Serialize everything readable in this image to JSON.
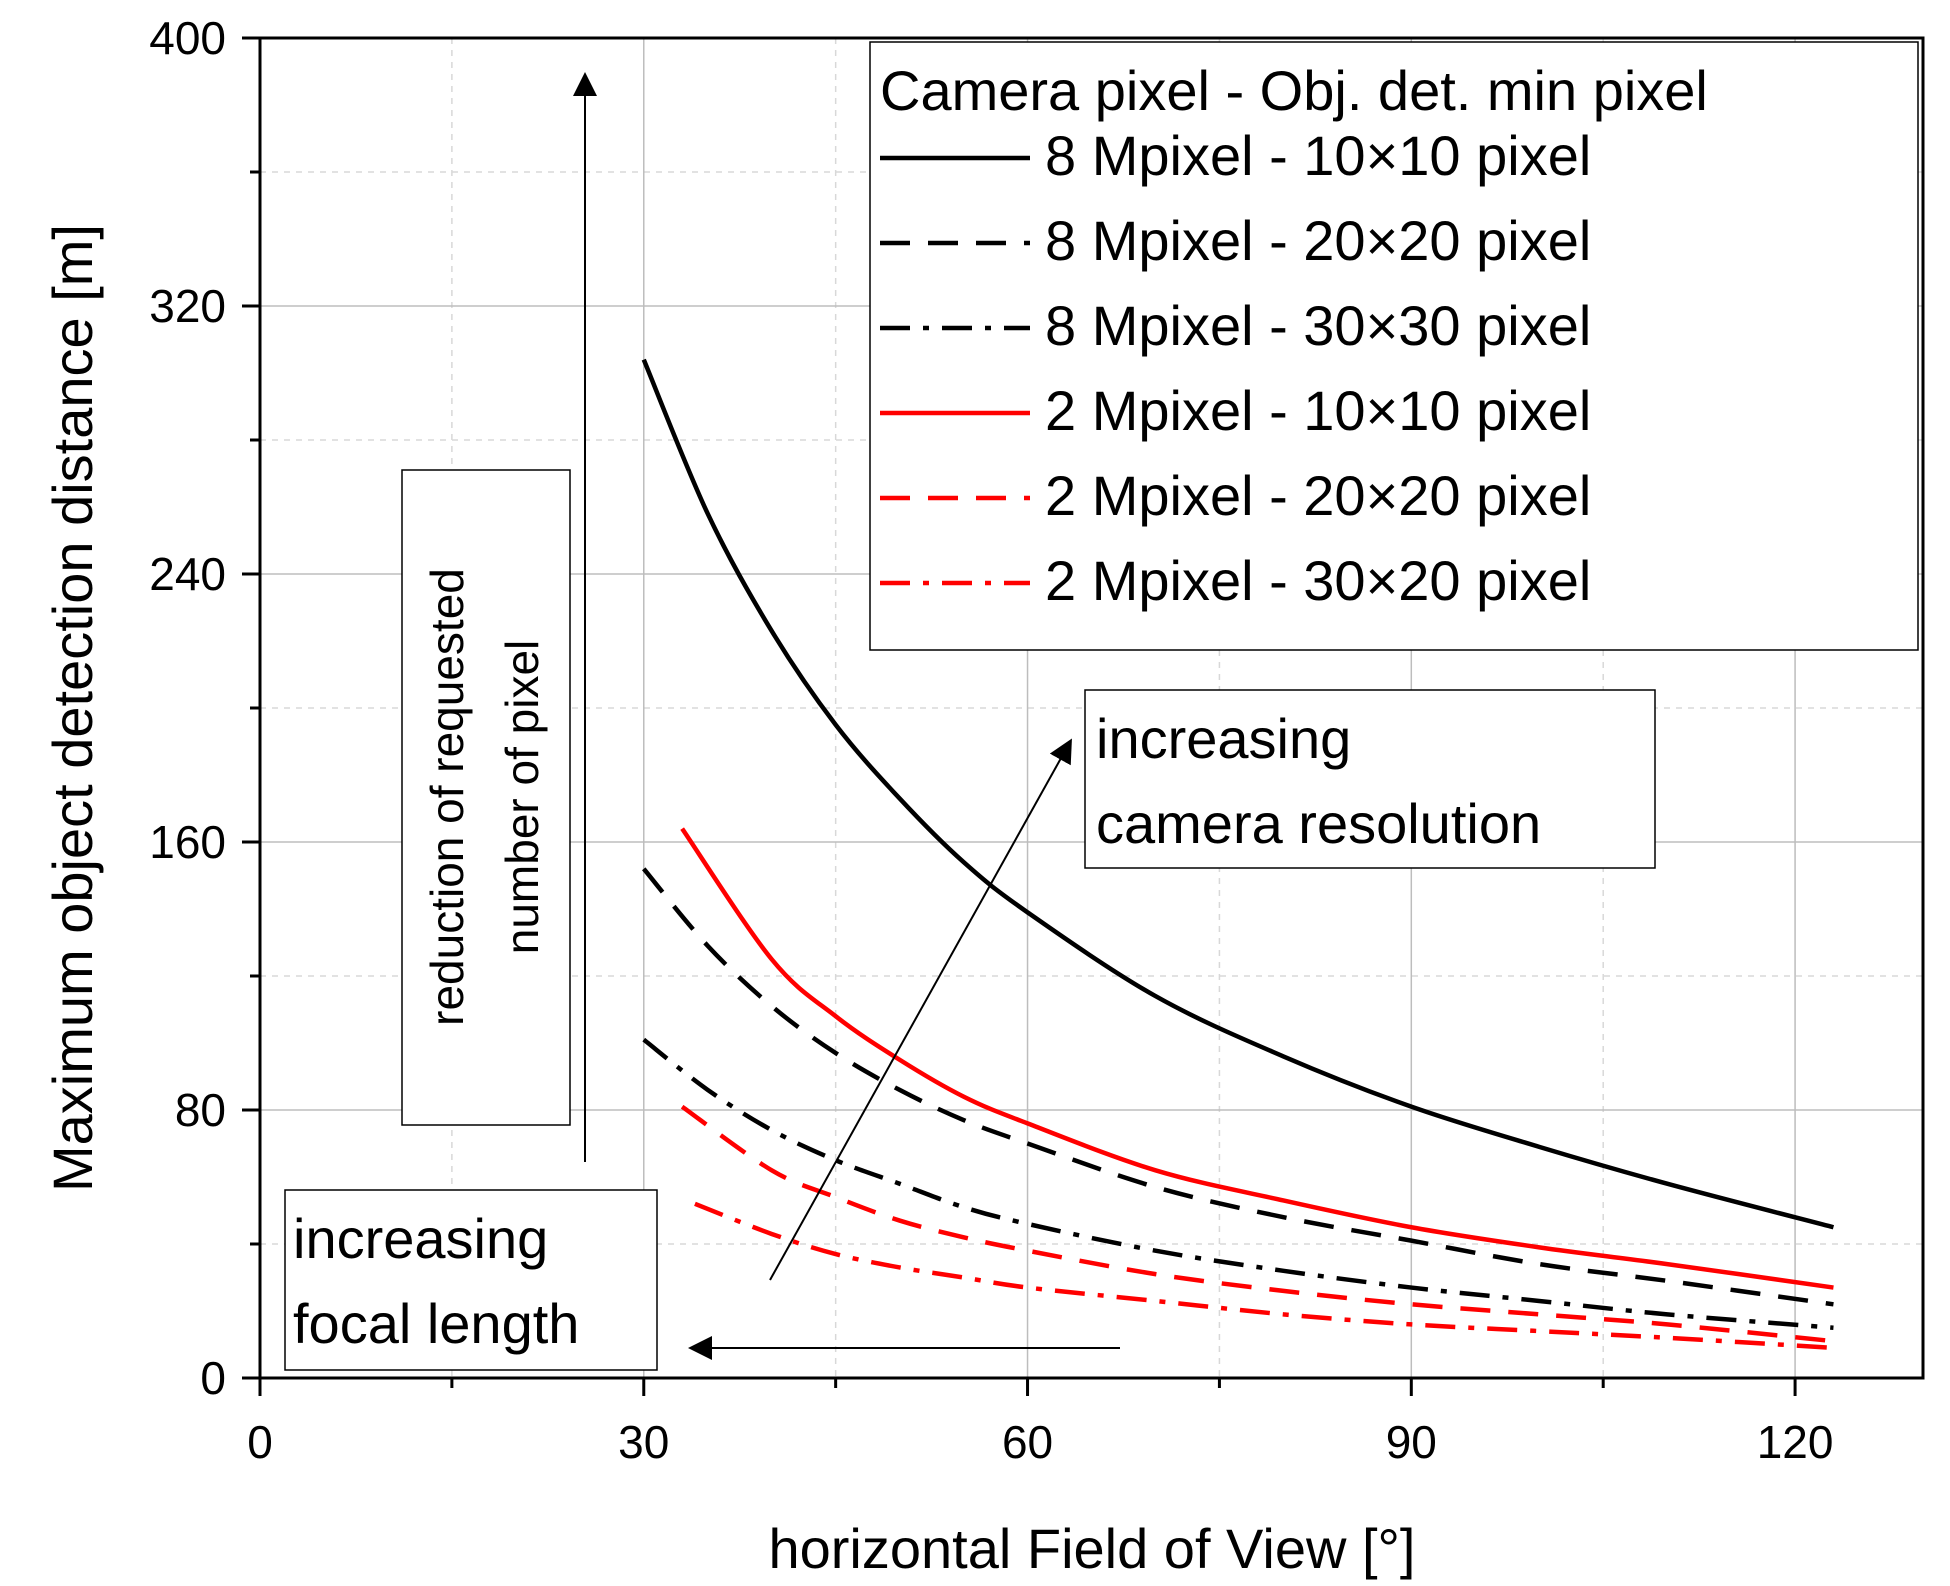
{
  "chart_data": {
    "type": "line",
    "title": "",
    "xlabel": "horizontal Field of View [°]",
    "ylabel": "Maximum object detection distance [m]",
    "xlim": [
      0,
      130
    ],
    "ylim": [
      0,
      400
    ],
    "xticks": [
      0,
      30,
      60,
      90,
      120
    ],
    "yticks": [
      0,
      80,
      160,
      240,
      320,
      400
    ],
    "grid": true,
    "legend_title": "Camera pixel - Obj. det. min pixel",
    "legend_position": "top-right",
    "series": [
      {
        "name": "8 Mpixel - 10×10 pixel",
        "color": "#000000",
        "dash": "solid",
        "x": [
          30,
          35,
          40,
          45,
          50,
          55,
          60,
          70,
          80,
          90,
          100,
          110,
          123
        ],
        "y": [
          304,
          258,
          223,
          195,
          173,
          154,
          139,
          114,
          96,
          81,
          69,
          58,
          45
        ]
      },
      {
        "name": "8 Mpixel - 20×20 pixel",
        "color": "#000000",
        "dash": "dash",
        "x": [
          30,
          35,
          40,
          45,
          50,
          55,
          60,
          70,
          80,
          90,
          100,
          110,
          123
        ],
        "y": [
          152,
          129,
          111,
          97,
          86,
          77,
          70,
          57,
          48,
          41,
          34,
          29,
          22
        ]
      },
      {
        "name": "8 Mpixel - 30×30 pixel",
        "color": "#000000",
        "dash": "dashdot",
        "x": [
          30,
          35,
          40,
          45,
          50,
          55,
          60,
          70,
          80,
          90,
          100,
          110,
          123
        ],
        "y": [
          101,
          86,
          74,
          65,
          58,
          51,
          46,
          38,
          32,
          27,
          23,
          19,
          15
        ]
      },
      {
        "name": "2 Mpixel - 10×10 pixel",
        "color": "#ff0000",
        "dash": "solid",
        "x": [
          33,
          40,
          45,
          50,
          55,
          60,
          70,
          80,
          90,
          100,
          110,
          123
        ],
        "y": [
          164,
          125,
          108,
          95,
          84,
          76,
          62,
          53,
          45,
          39,
          34,
          27
        ]
      },
      {
        "name": "2 Mpixel - 20×20 pixel",
        "color": "#ff0000",
        "dash": "dash",
        "x": [
          33,
          40,
          45,
          50,
          55,
          60,
          70,
          80,
          90,
          100,
          110,
          123
        ],
        "y": [
          81,
          62,
          54,
          47,
          42,
          38,
          31,
          26,
          22,
          19,
          16,
          11
        ]
      },
      {
        "name": "2 Mpixel - 30×20 pixel",
        "color": "#ff0000",
        "dash": "dashdot",
        "x": [
          34,
          40,
          45,
          50,
          55,
          60,
          70,
          80,
          90,
          100,
          110,
          123
        ],
        "y": [
          52,
          43,
          37,
          33,
          30,
          27,
          23,
          19,
          16,
          14,
          12,
          9
        ]
      }
    ],
    "annotations": {
      "vertical_box": [
        "reduction of requested",
        "number of pixel"
      ],
      "resolution_box": [
        "increasing",
        "camera resolution"
      ],
      "focal_box": [
        "increasing",
        "focal length"
      ]
    }
  }
}
